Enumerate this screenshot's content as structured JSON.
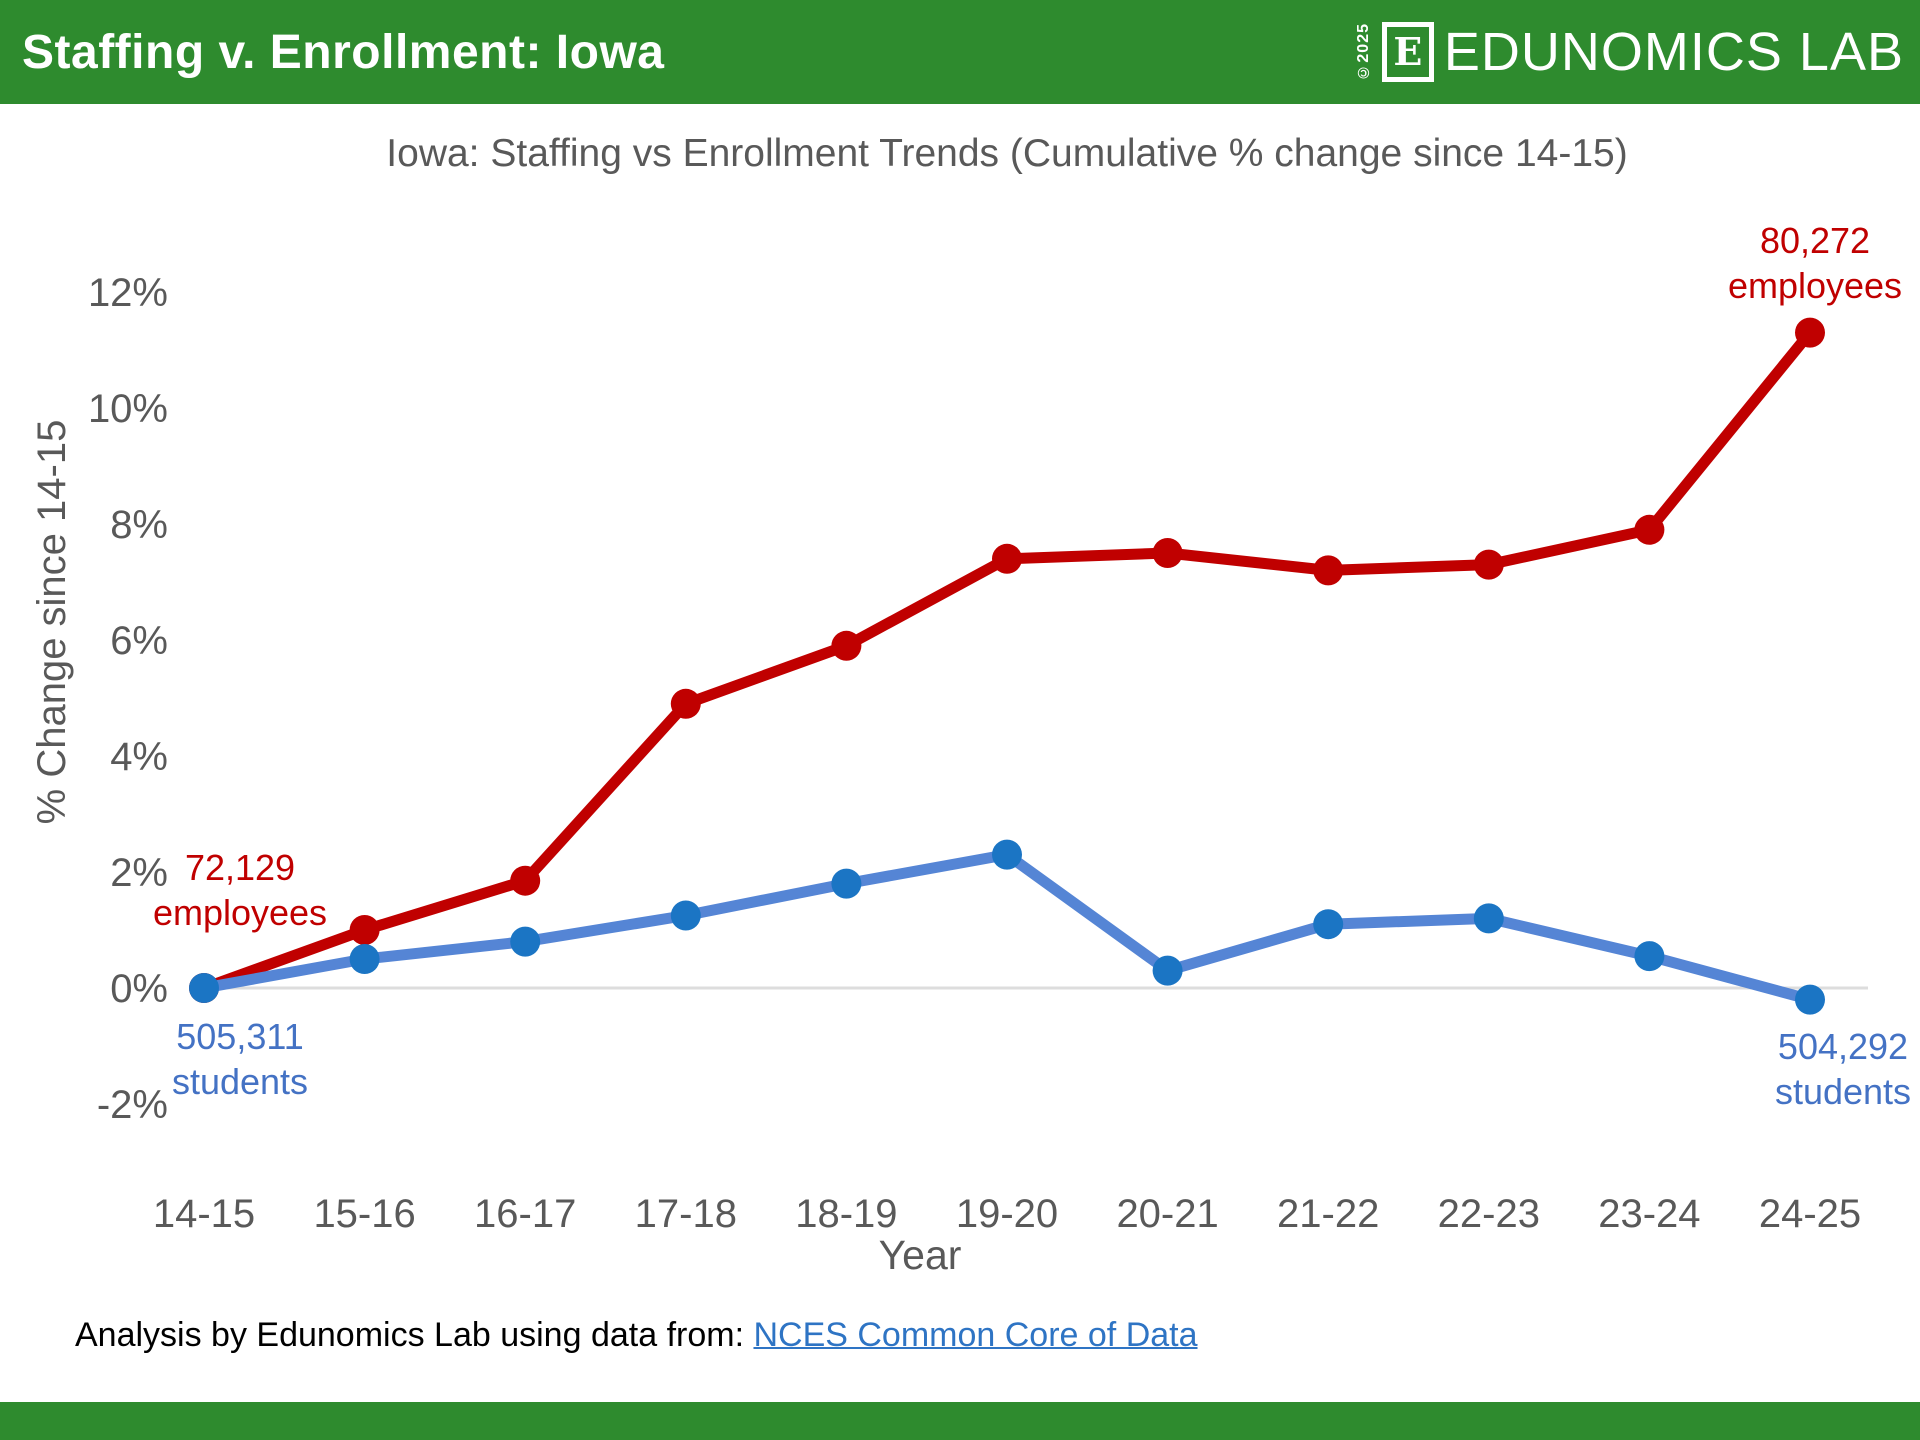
{
  "header": {
    "title_prefix": "Staffing v. Enrollment: ",
    "title_state": "Iowa",
    "copyright": "©2025",
    "logo_letter": "E",
    "brand": "EDUNOMICS LAB"
  },
  "chart_data": {
    "type": "line",
    "title": "Iowa: Staffing vs Enrollment Trends (Cumulative % change since 14-15)",
    "xlabel": "Year",
    "ylabel": "% Change since 14-15",
    "categories": [
      "14-15",
      "15-16",
      "16-17",
      "17-18",
      "18-19",
      "19-20",
      "20-21",
      "21-22",
      "22-23",
      "23-24",
      "24-25"
    ],
    "series": [
      {
        "name": "employees",
        "line_color": "#C00000",
        "marker_color": "#C00000",
        "values": [
          0,
          1.0,
          1.85,
          4.9,
          5.9,
          7.4,
          7.5,
          7.2,
          7.3,
          7.9,
          11.3
        ],
        "start_annotation": [
          "72,129",
          "employees"
        ],
        "end_annotation": [
          "80,272",
          "employees"
        ]
      },
      {
        "name": "students",
        "line_color": "#5585D5",
        "marker_color": "#1B75C4",
        "values": [
          0,
          0.5,
          0.8,
          1.25,
          1.8,
          2.3,
          0.3,
          1.1,
          1.2,
          0.55,
          -0.2
        ],
        "start_annotation": [
          "505,311",
          "students"
        ],
        "end_annotation": [
          "504,292",
          "students"
        ]
      }
    ],
    "yticks": [
      "12%",
      "10%",
      "8%",
      "6%",
      "4%",
      "2%",
      "0%",
      "-2%"
    ],
    "ytick_values": [
      12,
      10,
      8,
      6,
      4,
      2,
      0,
      -2
    ],
    "ylim": [
      -3,
      13
    ],
    "grid": "zero-baseline-only",
    "legend_position": "none"
  },
  "footer": {
    "source_prefix": "Analysis by Edunomics Lab using data from: ",
    "source_link": "NCES Common Core of Data"
  },
  "colors": {
    "brand_green": "#2E8B2E",
    "axis_gray": "#595959",
    "baseline_gray": "#DDDDDD",
    "employees_red": "#C00000",
    "students_blue": "#1B75C4",
    "link_blue": "#2E74C4"
  }
}
